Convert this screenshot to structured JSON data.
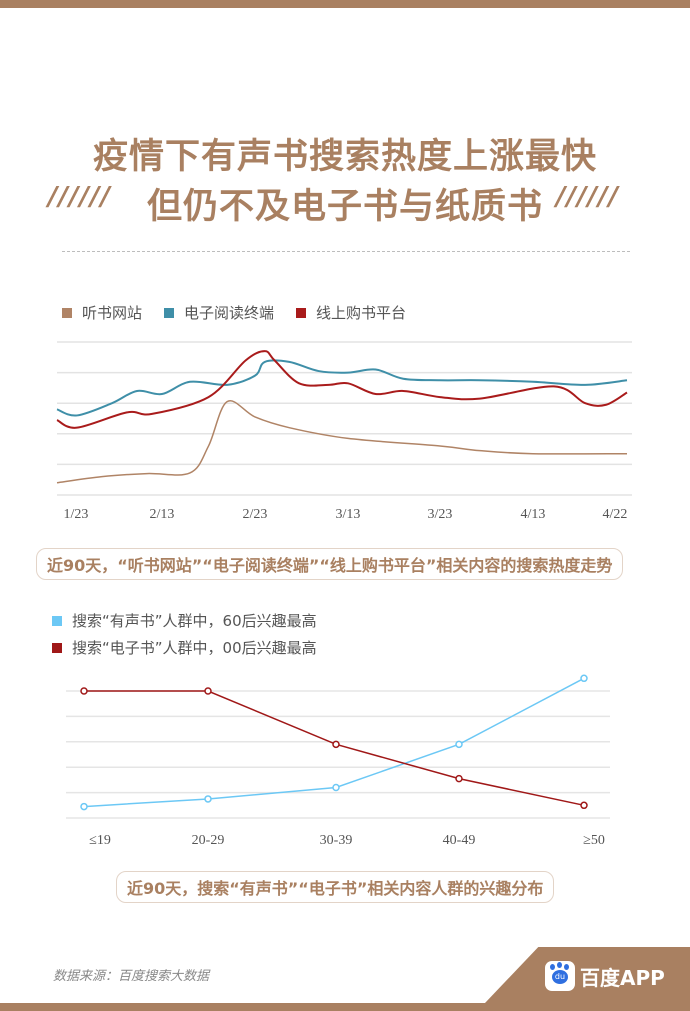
{
  "title": {
    "line1": "疫情下有声书搜索热度上涨最快",
    "line2": "但仍不及电子书与纸质书",
    "decor": "//////"
  },
  "colors": {
    "brand": "#a98061",
    "listen": "#b08466",
    "ebook": "#3f8fa8",
    "shop": "#a91b1b",
    "audio_group": "#6cc8f5",
    "ebook_group": "#a01818"
  },
  "chart_data": [
    {
      "type": "line",
      "legend": "top-left",
      "grid": true,
      "x_ticks": [
        "1/23",
        "2/13",
        "2/23",
        "3/13",
        "3/23",
        "4/13",
        "4/22"
      ],
      "ylim": [
        0,
        5
      ],
      "series": [
        {
          "name": "听书网站",
          "color": "#b08466",
          "points": [
            [
              "1/23",
              0.4
            ],
            [
              "2/1",
              0.6
            ],
            [
              "2/10",
              0.7
            ],
            [
              "2/16",
              0.72
            ],
            [
              "2/18",
              1.6
            ],
            [
              "2/20",
              3.05
            ],
            [
              "2/23",
              2.55
            ],
            [
              "3/1",
              2.2
            ],
            [
              "3/13",
              1.85
            ],
            [
              "3/23",
              1.6
            ],
            [
              "4/1",
              1.45
            ],
            [
              "4/13",
              1.35
            ],
            [
              "4/22",
              1.35
            ]
          ]
        },
        {
          "name": "电子阅读终端",
          "color": "#3f8fa8",
          "points": [
            [
              "1/23",
              2.8
            ],
            [
              "1/27",
              2.6
            ],
            [
              "2/3",
              3.0
            ],
            [
              "2/8",
              3.4
            ],
            [
              "2/13",
              3.3
            ],
            [
              "2/16",
              3.7
            ],
            [
              "2/20",
              3.6
            ],
            [
              "2/23",
              3.9
            ],
            [
              "2/25",
              4.35
            ],
            [
              "3/1",
              4.35
            ],
            [
              "3/7",
              4.05
            ],
            [
              "3/13",
              4.0
            ],
            [
              "3/16",
              4.1
            ],
            [
              "3/19",
              3.8
            ],
            [
              "3/23",
              3.75
            ],
            [
              "4/1",
              3.75
            ],
            [
              "4/13",
              3.7
            ],
            [
              "4/18",
              3.6
            ],
            [
              "4/22",
              3.75
            ]
          ]
        },
        {
          "name": "线上购书平台",
          "color": "#a91b1b",
          "points": [
            [
              "1/23",
              2.45
            ],
            [
              "1/27",
              2.2
            ],
            [
              "2/6",
              2.7
            ],
            [
              "2/11",
              2.65
            ],
            [
              "2/18",
              3.2
            ],
            [
              "2/22",
              4.4
            ],
            [
              "2/25",
              4.7
            ],
            [
              "2/27",
              4.4
            ],
            [
              "3/3",
              3.65
            ],
            [
              "3/9",
              3.6
            ],
            [
              "3/13",
              3.65
            ],
            [
              "3/16",
              3.3
            ],
            [
              "3/19",
              3.4
            ],
            [
              "3/23",
              3.2
            ],
            [
              "4/1",
              3.15
            ],
            [
              "4/15",
              3.55
            ],
            [
              "4/18",
              3.0
            ],
            [
              "4/20",
              2.95
            ],
            [
              "4/22",
              3.35
            ]
          ]
        }
      ],
      "caption": "近90天，“听书网站”“电子阅读终端”“线上购书平台”相关内容的搜索热度走势"
    },
    {
      "type": "line",
      "legend": "top-left",
      "grid": true,
      "categories": [
        "≤19",
        "20-29",
        "30-39",
        "40-49",
        "≥50"
      ],
      "ylim": [
        0,
        5
      ],
      "series": [
        {
          "name": "搜索“有声书”人群中，60后兴趣最高",
          "color": "#6cc8f5",
          "values": [
            0.45,
            0.75,
            1.2,
            2.9,
            5.5
          ]
        },
        {
          "name": "搜索“电子书”人群中，00后兴趣最高",
          "color": "#a01818",
          "values": [
            5.0,
            5.0,
            2.9,
            1.55,
            0.5
          ]
        }
      ],
      "caption": "近90天，搜索“有声书”“电子书”相关内容人群的兴趣分布"
    }
  ],
  "footer": {
    "source": "数据来源：百度搜索大数据",
    "brand": "百度APP",
    "logo_text": "du"
  }
}
